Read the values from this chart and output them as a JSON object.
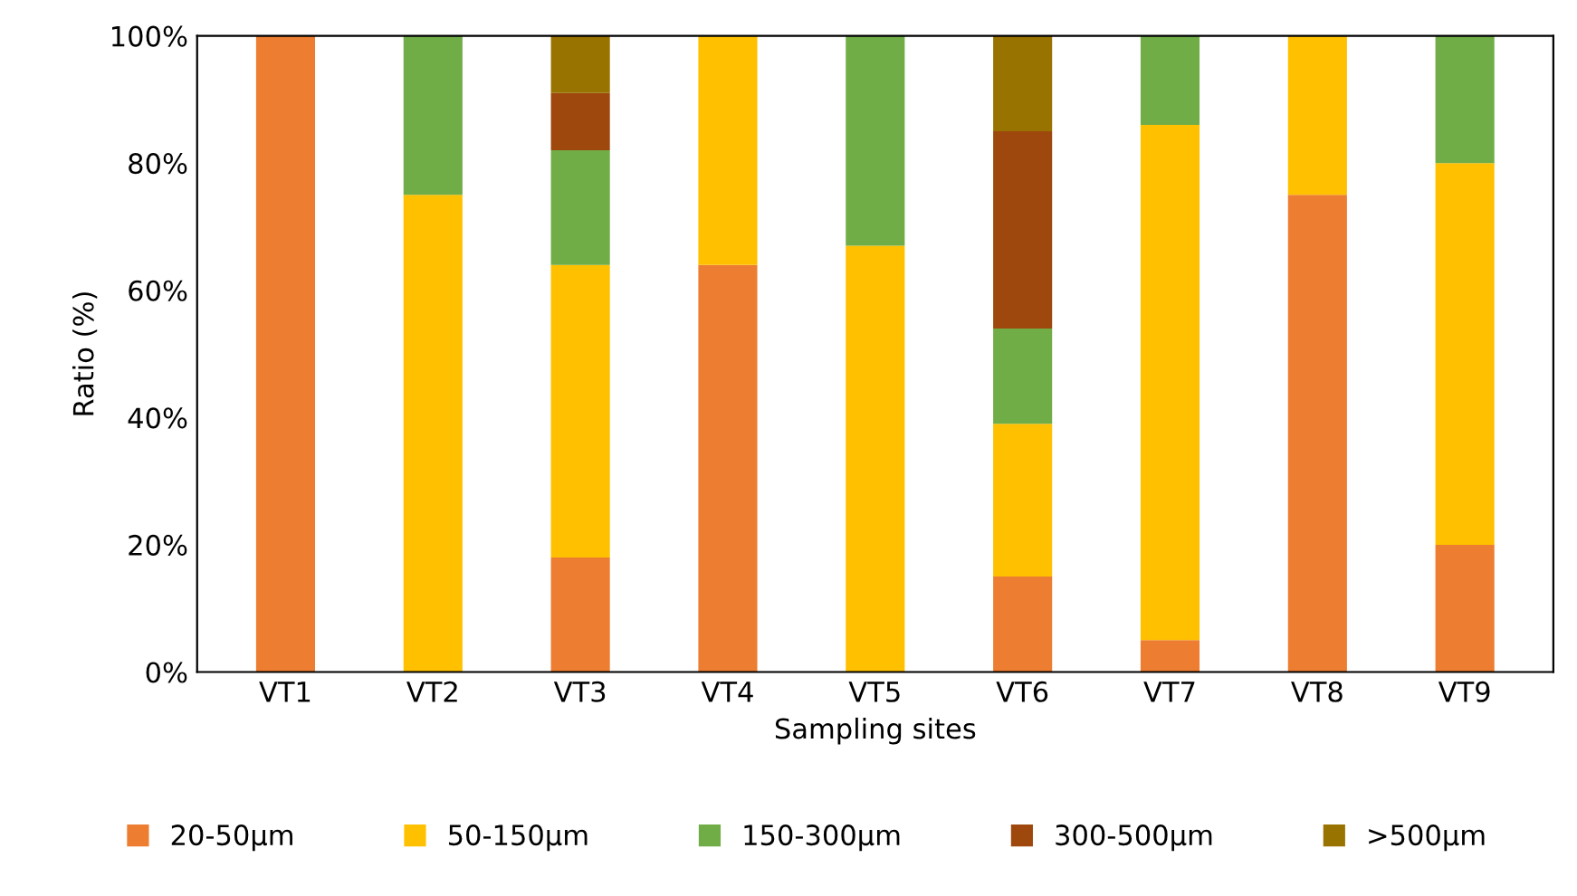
{
  "chart_data": {
    "type": "bar",
    "stacked": true,
    "xlabel": "Sampling sites",
    "ylabel": "Ratio (%)",
    "categories": [
      "VT1",
      "VT2",
      "VT3",
      "VT4",
      "VT5",
      "VT6",
      "VT7",
      "VT8",
      "VT9"
    ],
    "series": [
      {
        "name": "20-50µm",
        "color": "#ed7d31",
        "values": [
          100,
          0,
          18,
          64,
          0,
          15,
          5,
          75,
          20
        ]
      },
      {
        "name": "50-150µm",
        "color": "#ffc000",
        "values": [
          0,
          75,
          46,
          36,
          67,
          24,
          81,
          25,
          60
        ]
      },
      {
        "name": "150-300µm",
        "color": "#70ad47",
        "values": [
          0,
          25,
          18,
          0,
          33,
          15,
          14,
          0,
          20
        ]
      },
      {
        "name": "300-500µm",
        "color": "#9e480e",
        "values": [
          0,
          0,
          9,
          0,
          0,
          31,
          0,
          0,
          0
        ]
      },
      {
        "name": ">500µm",
        "color": "#997300",
        "values": [
          0,
          0,
          9,
          0,
          0,
          15,
          0,
          0,
          0
        ]
      }
    ],
    "ylim": [
      0,
      100
    ],
    "yticks": [
      {
        "value": 0,
        "label": "0%"
      },
      {
        "value": 20,
        "label": "20%"
      },
      {
        "value": 40,
        "label": "40%"
      },
      {
        "value": 60,
        "label": "60%"
      },
      {
        "value": 80,
        "label": "80%"
      },
      {
        "value": 100,
        "label": "100%"
      }
    ],
    "grid": false,
    "legend": "bottom"
  }
}
